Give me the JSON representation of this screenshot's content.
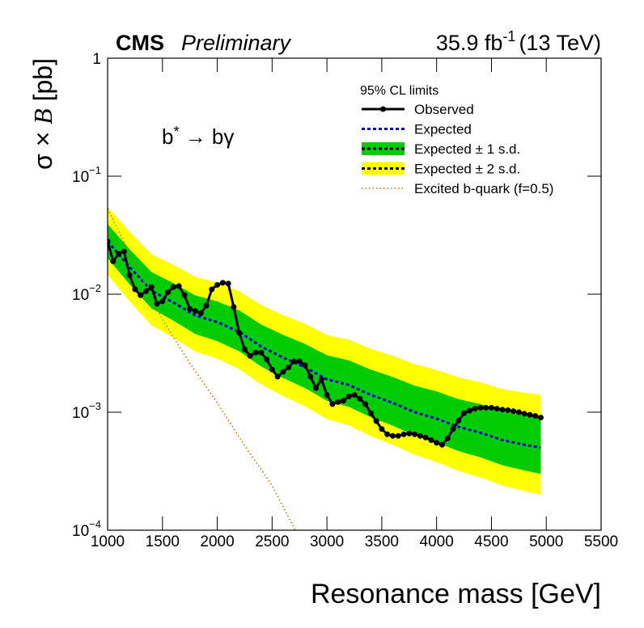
{
  "chart_data": {
    "type": "line",
    "title": "CMS",
    "subtitle": "Preliminary",
    "lumi": "35.9 fb",
    "lumi_exponent": "-1",
    "energy": "(13 TeV)",
    "x_label": "Resonance mass [GeV]",
    "y_label": [
      "σ × ",
      "B",
      " [pb]"
    ],
    "annotation": [
      "b",
      "*",
      " → bγ"
    ],
    "legend_title": "95% CL limits",
    "log_y": true,
    "xlim": [
      1000,
      5500
    ],
    "xticks": [
      1000,
      1500,
      2000,
      2500,
      3000,
      3500,
      4000,
      4500,
      5000,
      5500
    ],
    "ylim": [
      0.0001,
      1
    ],
    "yticks": [
      1,
      {
        "value": 0.1,
        "label": "10",
        "exponent": "−1"
      },
      {
        "value": 0.01,
        "label": "10",
        "exponent": "−2"
      },
      {
        "value": 0.001,
        "label": "10",
        "exponent": "−3"
      },
      {
        "value": 0.0001,
        "label": "10",
        "exponent": "−4"
      }
    ],
    "bands": [
      {
        "name": "Expected ± 2 s.d.",
        "color": "#ffff00",
        "x": [
          1000,
          1200,
          1400,
          1600,
          1800,
          2000,
          2200,
          2400,
          2600,
          2800,
          3000,
          3200,
          3400,
          3600,
          3800,
          4000,
          4200,
          4400,
          4600,
          4800,
          4950
        ],
        "upper": [
          0.0546,
          0.0339,
          0.0218,
          0.0177,
          0.014,
          0.01254,
          0.01058,
          0.00809,
          0.00664,
          0.0056,
          0.00451,
          0.00411,
          0.00344,
          0.003,
          0.00255,
          0.00228,
          0.00197,
          0.00179,
          0.00157,
          0.00146,
          0.0014
        ],
        "lower": [
          0.0146,
          0.00874,
          0.00544,
          0.00427,
          0.00327,
          0.00284,
          0.00232,
          0.00172,
          0.00137,
          0.00112,
          0.000874,
          0.000772,
          0.000627,
          0.00053,
          0.000436,
          0.000378,
          0.000318,
          0.00028,
          0.000239,
          0.000215,
          0.0002
        ]
      },
      {
        "name": "Expected ± 1 s.d.",
        "color": "#00cc00",
        "x": [
          1000,
          1200,
          1400,
          1600,
          1800,
          2000,
          2200,
          2400,
          2600,
          2800,
          3000,
          3200,
          3400,
          3600,
          3800,
          4000,
          4200,
          4400,
          4600,
          4800,
          4950
        ],
        "upper": [
          0.0392,
          0.0241,
          0.0154,
          0.0124,
          0.00977,
          0.0087,
          0.0073,
          0.00554,
          0.00452,
          0.00379,
          0.00304,
          0.00275,
          0.0023,
          0.00199,
          0.00168,
          0.0015,
          0.00129,
          0.00117,
          0.00102,
          0.000943,
          0.0009
        ],
        "lower": [
          0.0202,
          0.0121,
          0.00758,
          0.00597,
          0.00459,
          0.004,
          0.00328,
          0.00244,
          0.00195,
          0.0016,
          0.00125,
          0.00111,
          0.000907,
          0.00077,
          0.000636,
          0.000554,
          0.000468,
          0.000414,
          0.000355,
          0.000321,
          0.0003
        ]
      }
    ],
    "series": [
      {
        "name": "Observed",
        "color": "#000000",
        "marker": true,
        "x": [
          1000,
          1050,
          1100,
          1150,
          1200,
          1250,
          1300,
          1350,
          1400,
          1450,
          1500,
          1550,
          1600,
          1650,
          1700,
          1750,
          1800,
          1850,
          1900,
          1950,
          2000,
          2050,
          2100,
          2150,
          2200,
          2250,
          2300,
          2350,
          2400,
          2450,
          2500,
          2550,
          2600,
          2650,
          2700,
          2750,
          2800,
          2850,
          2900,
          2950,
          3000,
          3050,
          3100,
          3150,
          3200,
          3250,
          3300,
          3350,
          3400,
          3450,
          3500,
          3550,
          3600,
          3650,
          3700,
          3750,
          3800,
          3850,
          3900,
          3950,
          4000,
          4050,
          4100,
          4150,
          4200,
          4250,
          4300,
          4350,
          4400,
          4450,
          4500,
          4550,
          4600,
          4650,
          4700,
          4750,
          4800,
          4850,
          4900,
          4950
        ],
        "values": [
          0.028,
          0.019,
          0.022,
          0.023,
          0.0145,
          0.011,
          0.0098,
          0.0106,
          0.0115,
          0.0083,
          0.0087,
          0.0104,
          0.0115,
          0.0117,
          0.0098,
          0.0075,
          0.0072,
          0.0069,
          0.008,
          0.011,
          0.012,
          0.0125,
          0.0123,
          0.0078,
          0.0047,
          0.0034,
          0.003,
          0.0032,
          0.0032,
          0.0028,
          0.0023,
          0.002,
          0.0022,
          0.0024,
          0.0027,
          0.0027,
          0.0025,
          0.002,
          0.0016,
          0.0019,
          0.0014,
          0.00117,
          0.00122,
          0.00125,
          0.00136,
          0.0014,
          0.0013,
          0.00117,
          0.00098,
          0.00084,
          0.00072,
          0.00065,
          0.00063,
          0.00063,
          0.00065,
          0.00066,
          0.00065,
          0.00063,
          0.00061,
          0.00058,
          0.00055,
          0.00053,
          0.0006,
          0.00072,
          0.00085,
          0.00098,
          0.00103,
          0.00107,
          0.00109,
          0.00109,
          0.00109,
          0.00107,
          0.00105,
          0.00104,
          0.00102,
          0.001,
          0.00097,
          0.00095,
          0.00093,
          0.0009
        ]
      },
      {
        "name": "Expected",
        "color": "#0000cc",
        "dash": true,
        "x": [
          1000,
          1200,
          1400,
          1600,
          1800,
          2000,
          2200,
          2400,
          2600,
          2800,
          3000,
          3200,
          3400,
          3600,
          3800,
          4000,
          4200,
          4400,
          4600,
          4800,
          4950
        ],
        "values": [
          0.028,
          0.017,
          0.0107,
          0.0085,
          0.0066,
          0.0058,
          0.0048,
          0.0036,
          0.0029,
          0.0024,
          0.0019,
          0.0017,
          0.0014,
          0.0012,
          0.001,
          0.00088,
          0.00075,
          0.00067,
          0.00058,
          0.00053,
          0.0005
        ]
      },
      {
        "name": "Excited b-quark (f=0.5)",
        "color": "#cc6600",
        "dotted": true,
        "x": [
          1000,
          1250,
          1500,
          1750,
          2000,
          2250,
          2500,
          2750
        ],
        "values": [
          0.053,
          0.018,
          0.0061,
          0.0026,
          0.0012,
          0.00052,
          0.00024,
          8.5e-05
        ]
      }
    ]
  }
}
